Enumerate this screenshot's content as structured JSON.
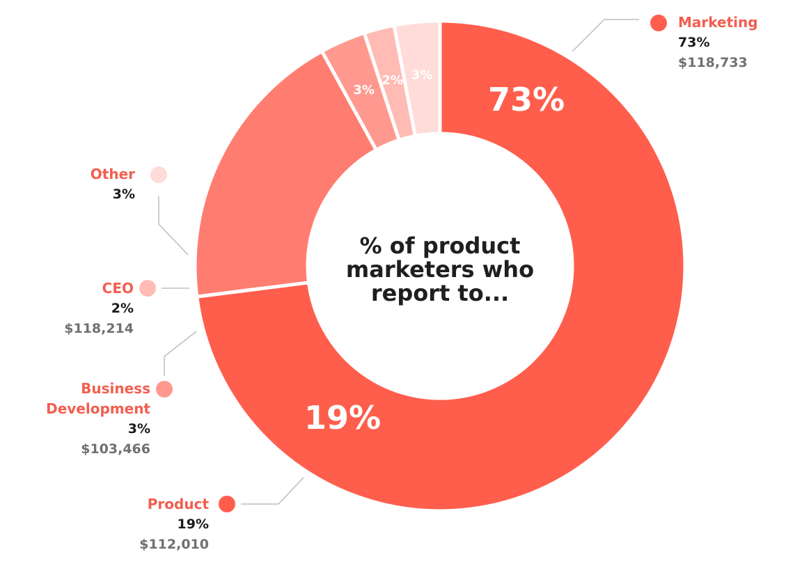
{
  "chart_data": {
    "type": "pie",
    "title": "% of product marketers who report to...",
    "slices": [
      {
        "name": "Marketing",
        "value": 73,
        "label": "73%",
        "salary": "$118,733",
        "color": "#ff5e4d",
        "label_color": "#ffffff"
      },
      {
        "name": "Product",
        "value": 19,
        "label": "19%",
        "salary": "$112,010",
        "color": "#ff7d70",
        "label_color": "#ffffff"
      },
      {
        "name": "Business Development",
        "name_lines": [
          "Business",
          "Development"
        ],
        "value": 3,
        "label": "3%",
        "salary": "$103,466",
        "color": "#ff998f",
        "label_color": "#ffffff"
      },
      {
        "name": "CEO",
        "value": 2,
        "label": "2%",
        "salary": "$118,214",
        "color": "#ffbbb4",
        "label_color": "#ffffff"
      },
      {
        "name": "Other",
        "value": 3,
        "label": "3%",
        "salary": "",
        "color": "#ffdcd9",
        "label_color": "#ffffff"
      }
    ]
  }
}
